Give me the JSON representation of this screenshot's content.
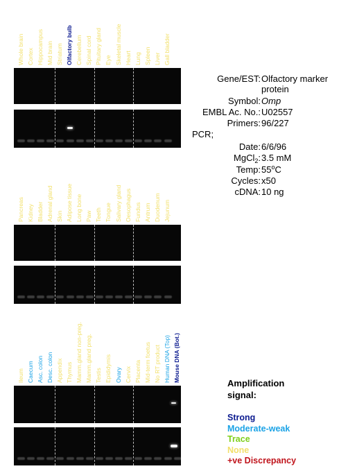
{
  "colors": {
    "strong": "#0b1a8f",
    "moderate_weak": "#1ba3e6",
    "trace": "#7ecf1a",
    "none": "#f2e06b",
    "discrepancy": "#c0141c"
  },
  "panels": [
    {
      "lanes": [
        {
          "label": "Whole brain",
          "level": "none"
        },
        {
          "label": "Cortex",
          "level": "none"
        },
        {
          "label": "Hippocampus",
          "level": "none"
        },
        {
          "label": "Mid brain",
          "level": "none"
        },
        {
          "label": "Striatum",
          "level": "none"
        },
        {
          "label": "Olfactory bulb",
          "level": "strong"
        },
        {
          "label": "Cerebellum",
          "level": "none"
        },
        {
          "label": "Spinal cord",
          "level": "none"
        },
        {
          "label": "Pituitary gland",
          "level": "none"
        },
        {
          "label": "Eye",
          "level": "none"
        },
        {
          "label": "Skeletal muscle",
          "level": "none"
        },
        {
          "label": "Heart",
          "level": "none"
        },
        {
          "label": "Lung",
          "level": "none"
        },
        {
          "label": "Spleen",
          "level": "none"
        },
        {
          "label": "Liver",
          "level": "none"
        },
        {
          "label": "Gall bladder",
          "level": "none"
        }
      ]
    },
    {
      "lanes": [
        {
          "label": "Pancreas",
          "level": "none"
        },
        {
          "label": "Kidney",
          "level": "none"
        },
        {
          "label": "Bladder",
          "level": "none"
        },
        {
          "label": "Adrenal gland",
          "level": "none"
        },
        {
          "label": "Skin",
          "level": "none"
        },
        {
          "label": "Adipose tissue",
          "level": "none"
        },
        {
          "label": "Long bone",
          "level": "none"
        },
        {
          "label": "Paw",
          "level": "none"
        },
        {
          "label": "Teeth",
          "level": "none"
        },
        {
          "label": "Tongue",
          "level": "none"
        },
        {
          "label": "Salivary gland",
          "level": "none"
        },
        {
          "label": "Oesophagus",
          "level": "none"
        },
        {
          "label": "Fundus",
          "level": "none"
        },
        {
          "label": "Antrum",
          "level": "none"
        },
        {
          "label": "Duodenum",
          "level": "none"
        },
        {
          "label": "Jejunum",
          "level": "none"
        }
      ]
    },
    {
      "lanes": [
        {
          "label": "Ileum",
          "level": "none"
        },
        {
          "label": "Caecum",
          "level": "moderate_weak"
        },
        {
          "label": "Asc. colon",
          "level": "moderate_weak"
        },
        {
          "label": "Desc. colon",
          "level": "moderate_weak"
        },
        {
          "label": "Appendix",
          "level": "none"
        },
        {
          "label": "Thymus",
          "level": "none"
        },
        {
          "label": "Mamm.gland non-preg.",
          "level": "none"
        },
        {
          "label": "Mamm.gland preg.",
          "level": "none"
        },
        {
          "label": "Testis",
          "level": "none"
        },
        {
          "label": "Epididymis",
          "level": "none"
        },
        {
          "label": "Ovary",
          "level": "moderate_weak"
        },
        {
          "label": "Cervix",
          "level": "none"
        },
        {
          "label": "Placenta",
          "level": "none"
        },
        {
          "label": "Mid-term foetus",
          "level": "none"
        },
        {
          "label": "No RT product",
          "level": "none"
        },
        {
          "label": "Human DNA (Top)",
          "level": "moderate_weak"
        },
        {
          "label": "Mouse DNA (Bot.)",
          "level": "strong"
        }
      ]
    }
  ],
  "info": {
    "gene_label": "Gene/EST:",
    "gene_value_line1": "Olfactory marker",
    "gene_value_line2": "protein",
    "symbol_label": "Symbol:",
    "symbol_value": "Omp",
    "embl_label": "EMBL Ac. No.:",
    "embl_value": "U02557",
    "primers_label": "Primers:",
    "primers_value": "96/227",
    "pcr_label": "PCR;",
    "date_label": "Date:",
    "date_value": "6/6/96",
    "mgcl_label_main": "MgCl",
    "mgcl_label_sub": "2",
    "mgcl_label_colon": ":",
    "mgcl_value": "3.5 mM",
    "temp_label": "Temp:",
    "temp_value_main": "55",
    "temp_value_sup": "o",
    "temp_value_unit": "C",
    "cycles_label": "Cycles:",
    "cycles_value": "x50",
    "cdna_label": "cDNA:",
    "cdna_value": "10 ng"
  },
  "legend": {
    "title_line1": "Amplification",
    "title_line2": "signal:",
    "items": [
      {
        "label": "Strong",
        "level": "strong"
      },
      {
        "label": "Moderate-weak",
        "level": "moderate_weak"
      },
      {
        "label": "Trace",
        "level": "trace"
      },
      {
        "label": "None",
        "level": "none"
      },
      {
        "label": "+ve Discrepancy",
        "level": "discrepancy"
      }
    ]
  }
}
